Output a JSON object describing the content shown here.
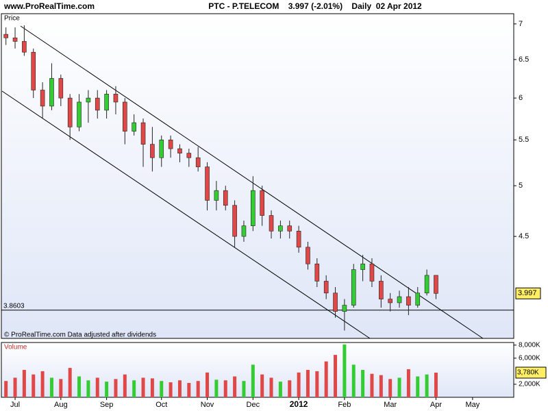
{
  "header": {
    "site": "www.ProRealTime.com",
    "title": "PTC - P.TELECOM    3.997 (-2.01%)    Daily  02 Apr 2012"
  },
  "chart_data": [
    {
      "type": "candlestick",
      "axis_title": "Price",
      "note": "© ProRealTime.com Data adjusted after dividends",
      "log_scale": true,
      "ylim": [
        3.64,
        7.15
      ],
      "yticks": [
        7,
        6.5,
        6,
        5.5,
        5,
        4.5
      ],
      "hline": 3.8603,
      "up_color": "#33cc33",
      "down_color": "#e04848",
      "open": [
        6.85,
        6.8,
        6.75,
        6.6,
        6.1,
        5.9,
        6.25,
        6.0,
        5.65,
        5.95,
        6.0,
        5.85,
        6.05,
        5.95,
        5.6,
        5.7,
        5.45,
        5.3,
        5.5,
        5.4,
        5.35,
        5.3,
        5.2,
        4.85,
        4.95,
        4.8,
        4.5,
        4.6,
        4.95,
        4.7,
        4.55,
        4.6,
        4.55,
        4.4,
        4.25,
        4.1,
        4.0,
        3.85,
        3.9,
        4.2,
        4.25,
        4.1,
        3.95,
        3.92,
        3.97,
        3.9,
        4.0,
        4.15,
        null,
        null,
        null,
        null,
        null,
        null,
        null,
        null
      ],
      "high": [
        6.95,
        6.95,
        6.98,
        6.65,
        6.2,
        6.45,
        6.3,
        6.05,
        6.05,
        6.1,
        6.1,
        6.1,
        6.15,
        6.0,
        5.8,
        5.75,
        5.65,
        5.55,
        5.55,
        5.45,
        5.4,
        5.42,
        5.25,
        5.05,
        5.0,
        4.85,
        4.65,
        5.1,
        5.0,
        4.75,
        4.65,
        4.65,
        4.6,
        4.45,
        4.3,
        4.15,
        4.05,
        3.95,
        4.25,
        4.33,
        4.3,
        4.15,
        4.0,
        4.02,
        4.05,
        4.05,
        4.2,
        4.15,
        null,
        null,
        null,
        null,
        null,
        null,
        null,
        null
      ],
      "low": [
        6.7,
        6.65,
        6.55,
        6.0,
        5.75,
        5.85,
        5.9,
        5.5,
        5.6,
        5.7,
        5.75,
        5.75,
        5.8,
        5.45,
        5.55,
        5.2,
        5.15,
        5.2,
        5.3,
        5.25,
        5.2,
        5.15,
        4.75,
        4.75,
        4.75,
        4.4,
        4.45,
        4.55,
        4.6,
        4.48,
        4.48,
        4.48,
        4.35,
        4.2,
        4.05,
        3.95,
        3.8,
        3.7,
        3.88,
        4.1,
        4.05,
        3.88,
        3.85,
        3.88,
        3.82,
        3.88,
        3.98,
        3.95,
        null,
        null,
        null,
        null,
        null,
        null,
        null,
        null
      ],
      "close": [
        6.8,
        6.75,
        6.6,
        6.1,
        5.9,
        6.25,
        6.0,
        5.65,
        5.95,
        6.0,
        5.85,
        6.05,
        5.95,
        5.6,
        5.7,
        5.45,
        5.3,
        5.5,
        5.4,
        5.35,
        5.3,
        5.2,
        4.85,
        4.95,
        4.8,
        4.5,
        4.6,
        4.95,
        4.7,
        4.55,
        4.6,
        4.55,
        4.4,
        4.25,
        4.1,
        4.0,
        3.85,
        3.9,
        4.2,
        4.25,
        4.1,
        3.95,
        3.92,
        3.97,
        3.9,
        4.0,
        4.15,
        3.997,
        null,
        null,
        null,
        null,
        null,
        null,
        null,
        null
      ]
    },
    {
      "type": "bar",
      "axis_title": "Volume",
      "categories": [
        null,
        "Jul",
        null,
        null,
        null,
        null,
        "Aug",
        null,
        null,
        null,
        null,
        "Sep",
        null,
        null,
        null,
        null,
        null,
        "Oct",
        null,
        null,
        null,
        null,
        "Nov",
        null,
        null,
        null,
        null,
        "Dec",
        null,
        null,
        null,
        null,
        "2012",
        null,
        null,
        null,
        null,
        "Feb",
        null,
        null,
        null,
        null,
        "Mar",
        null,
        null,
        null,
        null,
        "Apr",
        null,
        null,
        null,
        "May",
        null,
        null,
        null,
        null
      ],
      "ylim": [
        0,
        8400000
      ],
      "yticks": [
        {
          "value": 8000000,
          "label": "8,000K"
        },
        {
          "value": 6000000,
          "label": "6,000K"
        },
        {
          "value": 2000000,
          "label": "2,000K"
        }
      ],
      "values": [
        2500000,
        3000000,
        4200000,
        3500000,
        4000000,
        3000000,
        2800000,
        4500000,
        3200000,
        2600000,
        3000000,
        2400000,
        2800000,
        3500000,
        2600000,
        3000000,
        2900000,
        2500000,
        2300000,
        2600000,
        2200000,
        2500000,
        3800000,
        2700000,
        2600000,
        3200000,
        2500000,
        5000000,
        3500000,
        3000000,
        2400000,
        2600000,
        3800000,
        4200000,
        4000000,
        5500000,
        6500000,
        8100000,
        5000000,
        4200000,
        3600000,
        3400000,
        2800000,
        3000000,
        4300000,
        3200000,
        3500000,
        3780000,
        null,
        null,
        null,
        null,
        null,
        null,
        null,
        null
      ],
      "value_labels": [
        null,
        null,
        null,
        null,
        null,
        null,
        null,
        null,
        null,
        null,
        null,
        null,
        null,
        null,
        null,
        null,
        null,
        null,
        null,
        null,
        null,
        null,
        null,
        null,
        null,
        null,
        null,
        null,
        null,
        null,
        null,
        null,
        null,
        null,
        null,
        null,
        null,
        null,
        null,
        null,
        null,
        null,
        null,
        null,
        null,
        null,
        null,
        "3,780K",
        null,
        null,
        null,
        null,
        null,
        null,
        null,
        null
      ]
    }
  ]
}
